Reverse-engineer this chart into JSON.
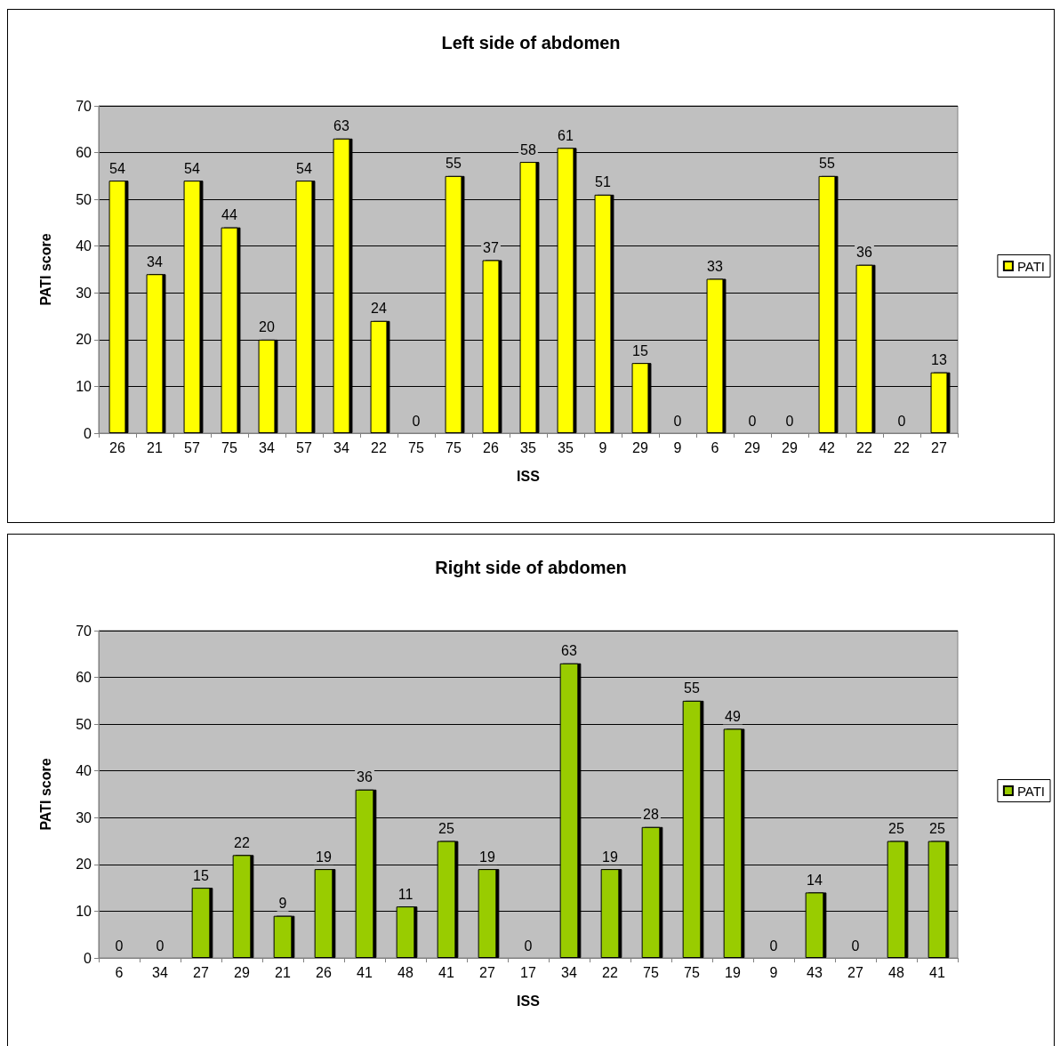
{
  "chart_data": [
    {
      "type": "bar",
      "title": "Left side of abdomen",
      "xlabel": "ISS",
      "ylabel": "PATI score",
      "categories": [
        "26",
        "21",
        "57",
        "75",
        "34",
        "57",
        "34",
        "22",
        "75",
        "75",
        "26",
        "35",
        "35",
        "9",
        "29",
        "9",
        "6",
        "29",
        "29",
        "42",
        "22",
        "22",
        "27"
      ],
      "series": [
        {
          "name": "PATI",
          "color": "#ffff00",
          "values": [
            54,
            34,
            54,
            44,
            20,
            54,
            63,
            24,
            0,
            55,
            37,
            58,
            61,
            51,
            15,
            0,
            33,
            0,
            0,
            55,
            36,
            0,
            13
          ]
        }
      ],
      "ylim": [
        0,
        70
      ],
      "yticks": [
        0,
        10,
        20,
        30,
        40,
        50,
        60,
        70
      ],
      "grid": "y",
      "legend": "right",
      "data_labels": true
    },
    {
      "type": "bar",
      "title": "Right side of abdomen",
      "xlabel": "ISS",
      "ylabel": "PATI score",
      "categories": [
        "6",
        "34",
        "27",
        "29",
        "21",
        "26",
        "41",
        "48",
        "41",
        "27",
        "17",
        "34",
        "22",
        "75",
        "75",
        "19",
        "9",
        "43",
        "27",
        "48",
        "41"
      ],
      "series": [
        {
          "name": "PATI",
          "color": "#99cc00",
          "values": [
            0,
            0,
            15,
            22,
            9,
            19,
            36,
            11,
            25,
            19,
            0,
            63,
            19,
            28,
            55,
            49,
            0,
            14,
            0,
            25,
            25
          ]
        }
      ],
      "ylim": [
        0,
        70
      ],
      "yticks": [
        0,
        10,
        20,
        30,
        40,
        50,
        60,
        70
      ],
      "grid": "y",
      "legend": "right",
      "data_labels": true
    }
  ]
}
